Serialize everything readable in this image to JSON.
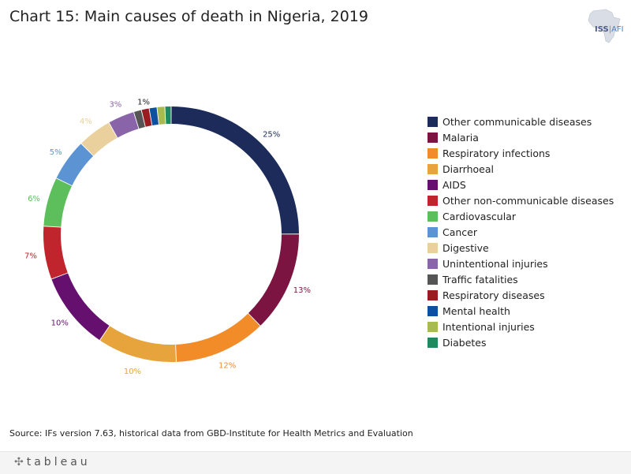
{
  "page": {
    "title": "Chart 15: Main causes of death in Nigeria, 2019",
    "source": "Source: IFs version 7.63, historical data from GBD-Institute for Health Metrics and Evaluation",
    "logo": {
      "brand": "ISS",
      "separator": "|",
      "suffix": "AFI"
    },
    "footer": {
      "brand": "tableau",
      "icon": "tableau-plus-icon"
    }
  },
  "chart_data": {
    "type": "pie",
    "variant": "donut",
    "title": "Chart 15: Main causes of death in Nigeria, 2019",
    "legend_position": "right",
    "slices": [
      {
        "name": "Other communicable diseases",
        "value": 25.3,
        "label": "25%",
        "color": "#1c2b5a"
      },
      {
        "name": "Malaria",
        "value": 12.9,
        "label": "13%",
        "color": "#7b1440"
      },
      {
        "name": "Respiratory infections",
        "value": 11.8,
        "label": "12%",
        "color": "#f28c28"
      },
      {
        "name": "Diarrhoeal",
        "value": 10.2,
        "label": "10%",
        "color": "#e8a43c"
      },
      {
        "name": "AIDS",
        "value": 10.0,
        "label": "10%",
        "color": "#65106e"
      },
      {
        "name": "Other non-communicable diseases",
        "value": 6.8,
        "label": "7%",
        "color": "#c0242c"
      },
      {
        "name": "Cardiovascular",
        "value": 6.3,
        "label": "6%",
        "color": "#5cbf5c"
      },
      {
        "name": "Cancer",
        "value": 5.4,
        "label": "5%",
        "color": "#5b93d3"
      },
      {
        "name": "Digestive",
        "value": 4.4,
        "label": "4%",
        "color": "#ead09c"
      },
      {
        "name": "Unintentional injuries",
        "value": 3.4,
        "label": "3%",
        "color": "#8a64a8"
      },
      {
        "name": "Traffic fatalities",
        "value": 1.0,
        "label": "",
        "color": "#555555"
      },
      {
        "name": "Respiratory diseases",
        "value": 1.0,
        "label": "",
        "color": "#9b1c20"
      },
      {
        "name": "Mental health",
        "value": 1.0,
        "label": "",
        "color": "#0d4fa0"
      },
      {
        "name": "Intentional injuries",
        "value": 1.0,
        "label": "1%",
        "color": "#a8bb50"
      },
      {
        "name": "Diabetes",
        "value": 0.8,
        "label": "",
        "color": "#1f8a60"
      }
    ]
  }
}
